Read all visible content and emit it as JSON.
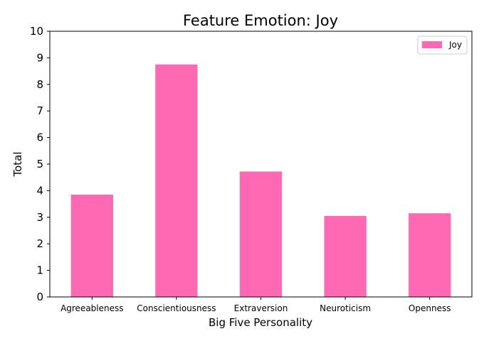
{
  "chart_data": {
    "type": "bar",
    "title": "Feature Emotion: Joy",
    "xlabel": "Big Five Personality",
    "ylabel": "Total",
    "categories": [
      "Agreeableness",
      "Conscientiousness",
      "Extraversion",
      "Neuroticism",
      "Openness"
    ],
    "series": [
      {
        "name": "Joy",
        "values": [
          3.85,
          8.75,
          4.72,
          3.05,
          3.15
        ],
        "color": "#ff69b4"
      }
    ],
    "ylim": [
      0,
      10
    ],
    "yticks": [
      "0",
      "1",
      "2",
      "3",
      "4",
      "5",
      "6",
      "7",
      "8",
      "9",
      "10"
    ],
    "legend_position": "top-right",
    "grid": false
  }
}
